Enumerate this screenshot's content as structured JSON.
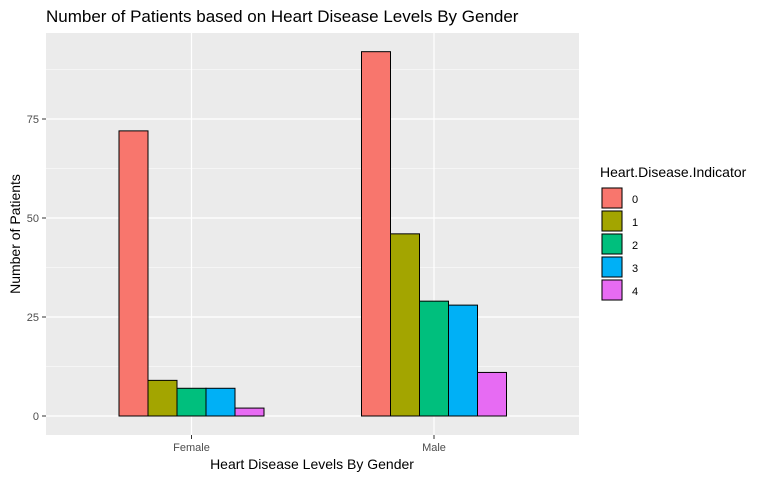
{
  "chart_data": {
    "type": "bar",
    "title": "Number of Patients based on Heart Disease Levels By Gender",
    "xlabel": "Heart Disease Levels By Gender",
    "ylabel": "Number of Patients",
    "categories": [
      "Female",
      "Male"
    ],
    "series": [
      {
        "name": "0",
        "color": "#F8766D",
        "values": [
          72,
          92
        ]
      },
      {
        "name": "1",
        "color": "#A3A500",
        "values": [
          9,
          46
        ]
      },
      {
        "name": "2",
        "color": "#00BF7D",
        "values": [
          7,
          29
        ]
      },
      {
        "name": "3",
        "color": "#00B0F6",
        "values": [
          7,
          28
        ]
      },
      {
        "name": "4",
        "color": "#E76BF3",
        "values": [
          2,
          11
        ]
      }
    ],
    "ylim": [
      0,
      97
    ],
    "yticks": [
      0,
      25,
      50,
      75
    ],
    "grid": true,
    "legend": {
      "title": "Heart.Disease.Indicator",
      "placement": "right"
    },
    "panel_background": "#EBEBEB",
    "grid_color": "#FFFFFF"
  }
}
